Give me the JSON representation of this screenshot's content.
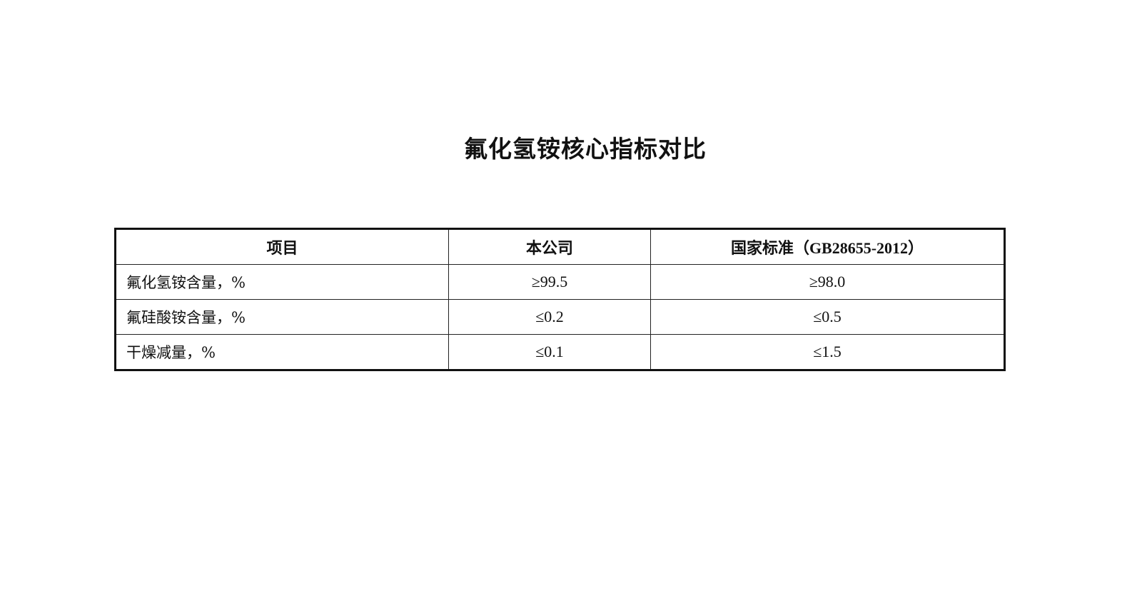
{
  "title": "氟化氢铵核心指标对比",
  "table": {
    "headers": [
      "项目",
      "本公司",
      "国家标准（GB28655-2012）"
    ],
    "rows": [
      [
        "氟化氢铵含量，%",
        "≥99.5",
        "≥98.0"
      ],
      [
        "氟硅酸铵含量，%",
        "≤0.2",
        "≤0.5"
      ],
      [
        "干燥减量，%",
        "≤0.1",
        "≤1.5"
      ]
    ]
  }
}
